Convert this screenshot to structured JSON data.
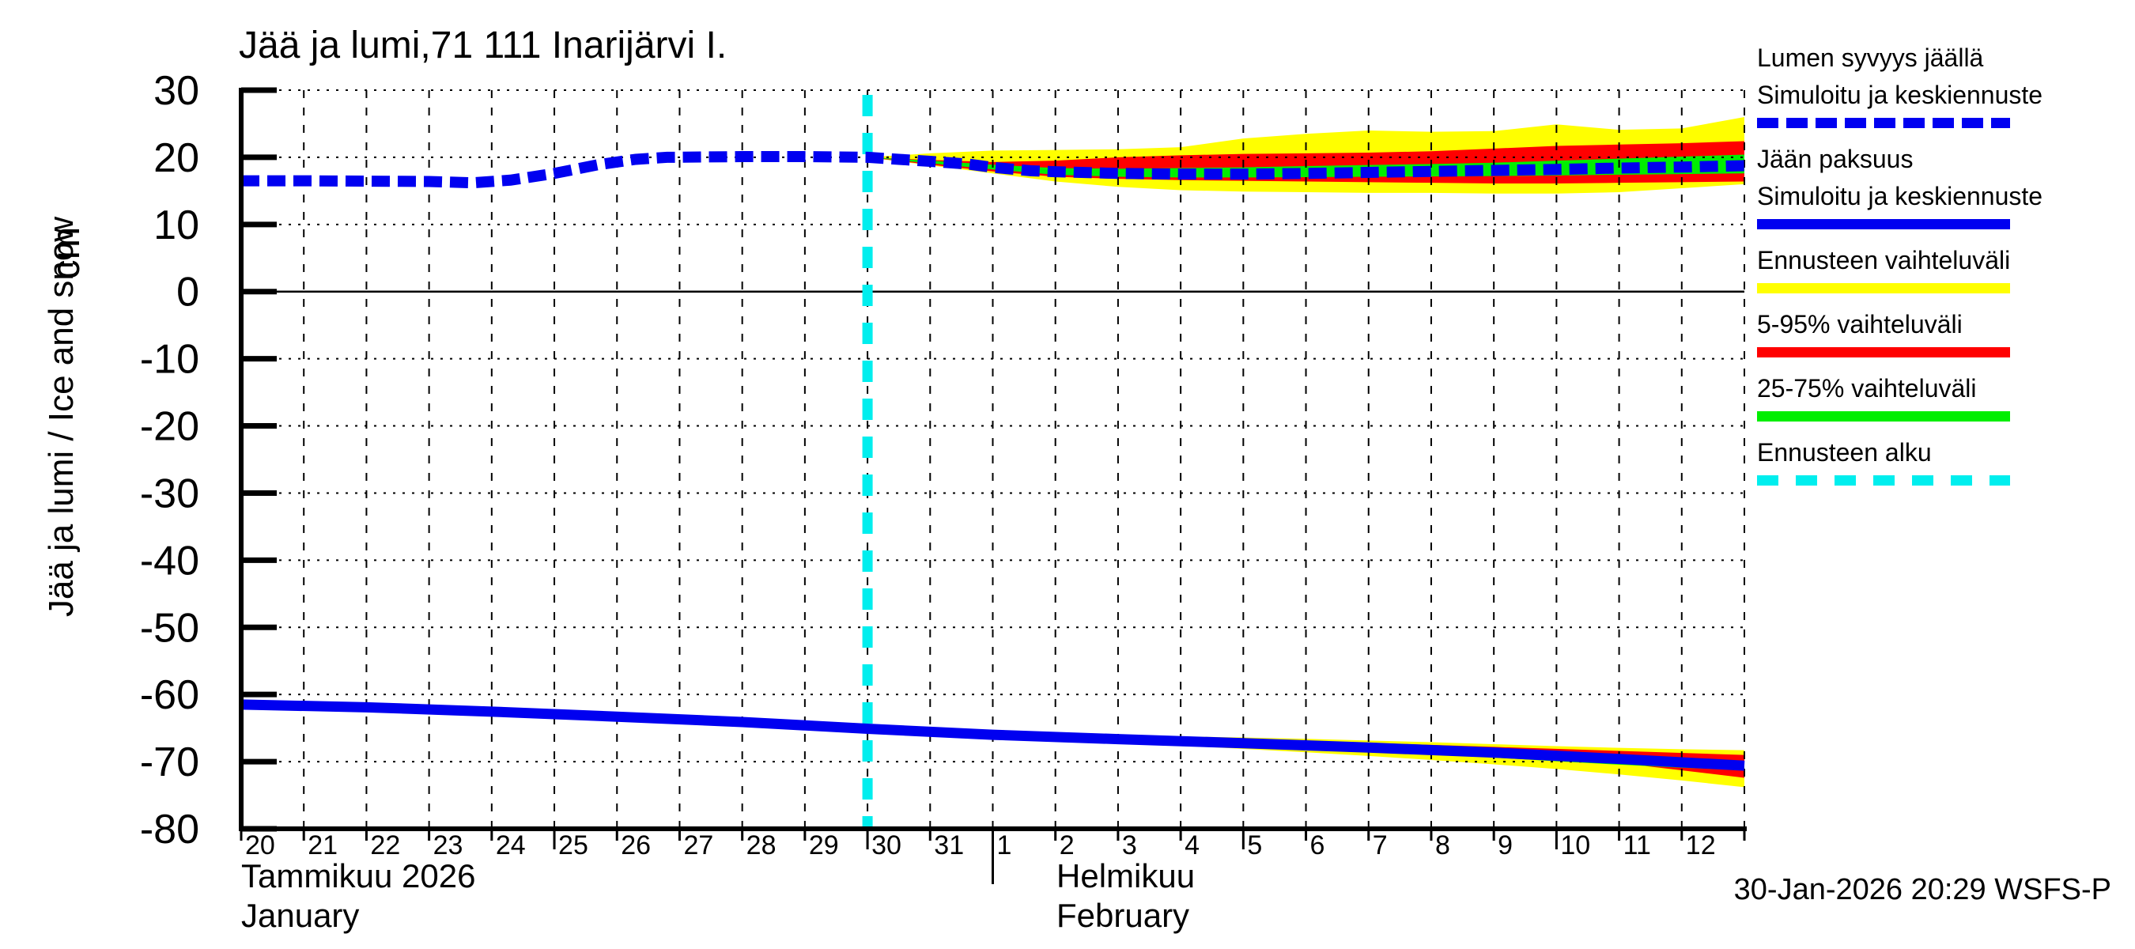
{
  "page": {
    "timestamp": "30-Jan-2026 20:29 WSFS-P"
  },
  "legend": {
    "entries": [
      {
        "lines": [
          "Lumen syvyys jäällä",
          "Simuloitu ja keskiennuste"
        ],
        "style": "dashed",
        "color": "#0000f0"
      },
      {
        "lines": [
          "Jään paksuus",
          "Simuloitu ja keskiennuste"
        ],
        "style": "solid",
        "color": "#0000f0"
      },
      {
        "lines": [
          "Ennusteen vaihteluväli"
        ],
        "style": "solid",
        "color": "#ffff00"
      },
      {
        "lines": [
          "5-95% vaihteluväli"
        ],
        "style": "solid",
        "color": "#ff0000"
      },
      {
        "lines": [
          "25-75% vaihteluväli"
        ],
        "style": "solid",
        "color": "#00ee00"
      },
      {
        "lines": [
          "Ennusteen alku"
        ],
        "style": "dashed",
        "color": "#00eeee"
      }
    ]
  },
  "chart_data": {
    "type": "line",
    "title": "Jää ja lumi,71 111 Inarijärvi I.",
    "ylabel": "Jää ja lumi / Ice and snow",
    "y_unit": "cm",
    "months": {
      "first_fi": "Tammikuu 2026",
      "first_en": "January",
      "second_fi": "Helmikuu",
      "second_en": "February"
    },
    "ylim": [
      -80,
      30
    ],
    "grid": "on",
    "legend_position": "right-outside",
    "forecast_start_day": 10,
    "colors": {
      "median_blue": "#0000f0",
      "range_yellow": "#ffff00",
      "range_red": "#ff0000",
      "range_green": "#00ee00",
      "forecast_cyan": "#00eeee",
      "axis_black": "#000000"
    },
    "layout": {
      "x_left": 305,
      "x_right": 2206,
      "y_top": 114,
      "y_bottom": 1048,
      "days_total": 24,
      "value_top": 30,
      "value_bottom": -80
    },
    "y_ticks": [
      30,
      20,
      10,
      0,
      -10,
      -20,
      -30,
      -40,
      -50,
      -60,
      -70,
      -80
    ],
    "x_ticks": [
      {
        "d": 0,
        "label": "20"
      },
      {
        "d": 1,
        "label": "21"
      },
      {
        "d": 2,
        "label": "22"
      },
      {
        "d": 3,
        "label": "23"
      },
      {
        "d": 4,
        "label": "24"
      },
      {
        "d": 5,
        "label": "25",
        "major": true
      },
      {
        "d": 6,
        "label": "26"
      },
      {
        "d": 7,
        "label": "27"
      },
      {
        "d": 8,
        "label": "28"
      },
      {
        "d": 9,
        "label": "29"
      },
      {
        "d": 10,
        "label": "30",
        "major": true
      },
      {
        "d": 11,
        "label": "31"
      },
      {
        "d": 12,
        "label": "1",
        "divider": true
      },
      {
        "d": 13,
        "label": "2"
      },
      {
        "d": 14,
        "label": "3"
      },
      {
        "d": 15,
        "label": "4"
      },
      {
        "d": 16,
        "label": "5",
        "major": true
      },
      {
        "d": 17,
        "label": "6"
      },
      {
        "d": 18,
        "label": "7"
      },
      {
        "d": 19,
        "label": "8"
      },
      {
        "d": 20,
        "label": "9"
      },
      {
        "d": 21,
        "label": "10",
        "major": true
      },
      {
        "d": 22,
        "label": "11"
      },
      {
        "d": 23,
        "label": "12"
      },
      {
        "d": 24,
        "label": ""
      }
    ],
    "series": {
      "snow_depth": {
        "name": "Lumen syvyys jäällä (simuloitu ja keskiennuste)",
        "unit": "cm",
        "points": [
          [
            0,
            16.5
          ],
          [
            1,
            16.5
          ],
          [
            2,
            16.45
          ],
          [
            3,
            16.4
          ],
          [
            3.7,
            16.2
          ],
          [
            4.3,
            16.6
          ],
          [
            5,
            17.6
          ],
          [
            5.7,
            18.9
          ],
          [
            6.3,
            19.7
          ],
          [
            6.8,
            20.0
          ],
          [
            8,
            20.1
          ],
          [
            9,
            20.1
          ],
          [
            10,
            20.0
          ],
          [
            10.5,
            19.7
          ],
          [
            11,
            19.4
          ],
          [
            11.6,
            19.0
          ],
          [
            12,
            18.5
          ],
          [
            12.6,
            18.0
          ],
          [
            13,
            17.85
          ],
          [
            14,
            17.6
          ],
          [
            15,
            17.5
          ],
          [
            16,
            17.5
          ],
          [
            17,
            17.6
          ],
          [
            18,
            17.75
          ],
          [
            19,
            17.9
          ],
          [
            20,
            18.05
          ],
          [
            21,
            18.2
          ],
          [
            22,
            18.4
          ],
          [
            23,
            18.55
          ],
          [
            24,
            18.75
          ]
        ]
      },
      "ice_thickness": {
        "name": "Jään paksuus (simuloitu ja keskiennuste)",
        "unit": "cm",
        "points": [
          [
            0,
            -61.5
          ],
          [
            2,
            -61.9
          ],
          [
            4,
            -62.55
          ],
          [
            6,
            -63.3
          ],
          [
            8,
            -64.1
          ],
          [
            10,
            -65.1
          ],
          [
            12,
            -66.0
          ],
          [
            14,
            -66.65
          ],
          [
            16,
            -67.25
          ],
          [
            18,
            -67.9
          ],
          [
            20,
            -68.65
          ],
          [
            22,
            -69.6
          ],
          [
            24,
            -70.6
          ]
        ]
      }
    },
    "bands": [
      {
        "name": "snow-full-range",
        "color": "range_yellow",
        "points": [
          [
            10,
            20,
            20
          ],
          [
            11,
            20.6,
            18.8
          ],
          [
            12,
            21.0,
            17.6
          ],
          [
            13,
            21.1,
            16.4
          ],
          [
            14,
            21.2,
            15.6
          ],
          [
            15,
            21.5,
            15.1
          ],
          [
            16,
            22.8,
            14.9
          ],
          [
            17,
            23.5,
            14.8
          ],
          [
            18,
            24.0,
            14.7
          ],
          [
            19,
            23.8,
            14.7
          ],
          [
            20,
            23.9,
            14.6
          ],
          [
            21,
            24.9,
            14.6
          ],
          [
            22,
            24.1,
            14.8
          ],
          [
            23,
            24.3,
            15.4
          ],
          [
            24,
            26.0,
            16.0
          ]
        ]
      },
      {
        "name": "ice-full-range",
        "color": "range_yellow",
        "points": [
          [
            12,
            -66.0,
            -66.0
          ],
          [
            13,
            -66.0,
            -66.6
          ],
          [
            14,
            -66.1,
            -67.15
          ],
          [
            15,
            -66.25,
            -67.6
          ],
          [
            16,
            -66.4,
            -68.1
          ],
          [
            17,
            -66.6,
            -68.6
          ],
          [
            18,
            -66.85,
            -69.15
          ],
          [
            19,
            -67.1,
            -69.75
          ],
          [
            20,
            -67.4,
            -70.4
          ],
          [
            21,
            -67.7,
            -71.1
          ],
          [
            22,
            -67.95,
            -71.9
          ],
          [
            23,
            -68.15,
            -72.8
          ],
          [
            24,
            -68.3,
            -73.8
          ]
        ]
      },
      {
        "name": "snow-5-95",
        "color": "range_red",
        "points": [
          [
            10,
            20,
            20
          ],
          [
            11,
            19.6,
            18.9
          ],
          [
            12,
            19.3,
            17.9
          ],
          [
            13,
            19.5,
            17.1
          ],
          [
            14,
            20.0,
            16.8
          ],
          [
            15,
            20.3,
            16.6
          ],
          [
            16,
            20.5,
            16.5
          ],
          [
            17,
            20.6,
            16.4
          ],
          [
            18,
            20.7,
            16.3
          ],
          [
            19,
            20.9,
            16.2
          ],
          [
            20,
            21.3,
            16.1
          ],
          [
            21,
            21.7,
            16.1
          ],
          [
            22,
            21.9,
            16.2
          ],
          [
            23,
            22.1,
            16.3
          ],
          [
            24,
            22.4,
            16.4
          ]
        ]
      },
      {
        "name": "ice-5-95",
        "color": "range_red",
        "points": [
          [
            12,
            -66.0,
            -66.0
          ],
          [
            14,
            -66.3,
            -66.9
          ],
          [
            16,
            -66.7,
            -67.5
          ],
          [
            18,
            -67.2,
            -68.2
          ],
          [
            20,
            -67.8,
            -69.0
          ],
          [
            22,
            -68.4,
            -70.2
          ],
          [
            24,
            -69.0,
            -72.4
          ]
        ]
      },
      {
        "name": "snow-25-75",
        "color": "range_green",
        "points": [
          [
            10,
            20,
            20
          ],
          [
            11,
            19.5,
            19.1
          ],
          [
            12,
            18.9,
            18.2
          ],
          [
            13,
            18.4,
            17.4
          ],
          [
            14,
            18.3,
            17.1
          ],
          [
            15,
            18.4,
            17.0
          ],
          [
            16,
            18.5,
            17.0
          ],
          [
            17,
            18.7,
            17.05
          ],
          [
            18,
            18.85,
            17.1
          ],
          [
            19,
            19.0,
            17.15
          ],
          [
            20,
            19.2,
            17.2
          ],
          [
            21,
            19.5,
            17.3
          ],
          [
            22,
            19.8,
            17.4
          ],
          [
            23,
            20.1,
            17.5
          ],
          [
            24,
            20.4,
            17.6
          ]
        ]
      },
      {
        "name": "ice-25-75",
        "color": "range_green",
        "points": [
          [
            12,
            -66.0,
            -66.0
          ],
          [
            14,
            -66.5,
            -66.9
          ],
          [
            16,
            -66.9,
            -67.4
          ],
          [
            18,
            -67.5,
            -68.3
          ],
          [
            20,
            -68.2,
            -69.4
          ],
          [
            21,
            -68.55,
            -69.95
          ],
          [
            22,
            -68.95,
            -70.45
          ],
          [
            23,
            -69.4,
            -70.9
          ],
          [
            24,
            -69.9,
            -71.3
          ]
        ]
      }
    ]
  }
}
